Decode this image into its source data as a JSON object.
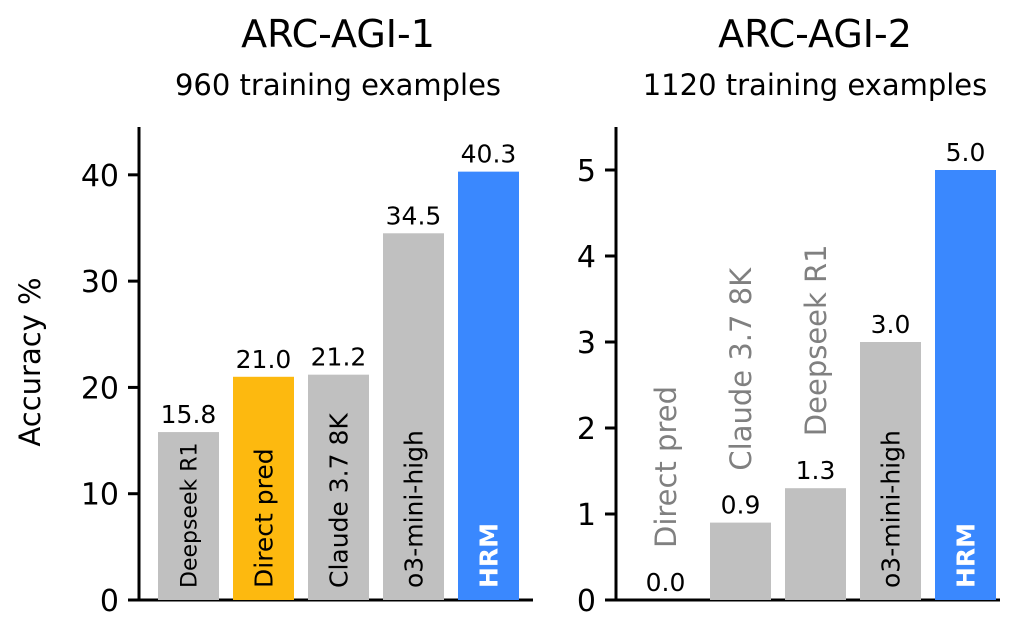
{
  "chart_data": [
    {
      "type": "bar",
      "title": "ARC-AGI-1",
      "subtitle": "960 training examples",
      "xlabel": "",
      "ylabel": "Accuracy %",
      "ylim": [
        0,
        44.5
      ],
      "yticks": [
        0,
        10,
        20,
        30,
        40
      ],
      "grid": false,
      "categories": [
        "Deepseek R1",
        "Direct pred",
        "Claude 3.7 8K",
        "o3-mini-high",
        "HRM"
      ],
      "values": [
        15.8,
        21.0,
        21.2,
        34.5,
        40.3
      ],
      "value_labels": [
        "15.8",
        "21.0",
        "21.2",
        "34.5",
        "40.3"
      ],
      "bar_colors": [
        "#c0c0c0",
        "#fdb90f",
        "#c0c0c0",
        "#c0c0c0",
        "#3a88fe"
      ],
      "label_colors": [
        "#000000",
        "#000000",
        "#000000",
        "#000000",
        "#ffffff"
      ],
      "label_bold": [
        false,
        false,
        false,
        false,
        true
      ],
      "label_placement": [
        "inside",
        "inside",
        "inside",
        "inside",
        "inside"
      ]
    },
    {
      "type": "bar",
      "title": "ARC-AGI-2",
      "subtitle": "1120 training examples",
      "xlabel": "",
      "ylabel": "",
      "ylim": [
        0,
        5.5
      ],
      "yticks": [
        0,
        1,
        2,
        3,
        4,
        5
      ],
      "grid": false,
      "categories": [
        "Direct pred",
        "Claude 3.7 8K",
        "Deepseek R1",
        "o3-mini-high",
        "HRM"
      ],
      "values": [
        0.0,
        0.9,
        1.3,
        3.0,
        5.0
      ],
      "value_labels": [
        "0.0",
        "0.9",
        "1.3",
        "3.0",
        "5.0"
      ],
      "bar_colors": [
        "#c0c0c0",
        "#c0c0c0",
        "#c0c0c0",
        "#c0c0c0",
        "#3a88fe"
      ],
      "label_colors": [
        "#808080",
        "#808080",
        "#808080",
        "#000000",
        "#ffffff"
      ],
      "label_bold": [
        false,
        false,
        false,
        false,
        true
      ],
      "label_placement": [
        "above",
        "above",
        "above",
        "inside",
        "inside"
      ]
    }
  ]
}
